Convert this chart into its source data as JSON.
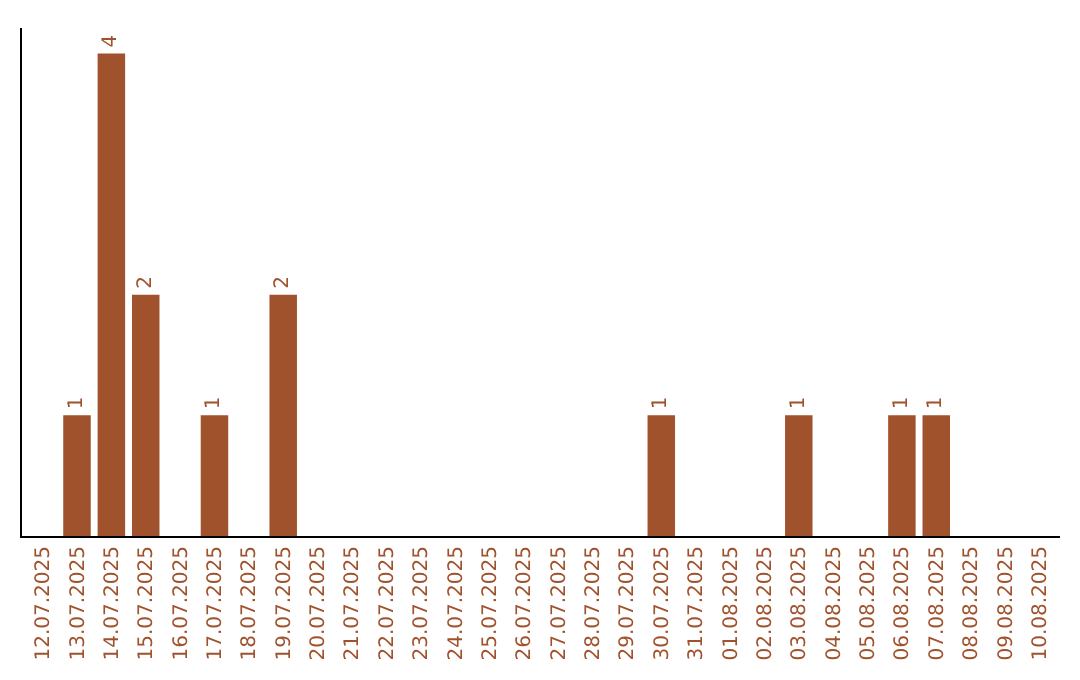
{
  "chart_data": {
    "type": "bar",
    "categories": [
      "12.07.2025",
      "13.07.2025",
      "14.07.2025",
      "15.07.2025",
      "16.07.2025",
      "17.07.2025",
      "18.07.2025",
      "19.07.2025",
      "20.07.2025",
      "21.07.2025",
      "22.07.2025",
      "23.07.2025",
      "24.07.2025",
      "25.07.2025",
      "26.07.2025",
      "27.07.2025",
      "28.07.2025",
      "29.07.2025",
      "30.07.2025",
      "31.07.2025",
      "01.08.2025",
      "02.08.2025",
      "03.08.2025",
      "04.08.2025",
      "05.08.2025",
      "06.08.2025",
      "07.08.2025",
      "08.08.2025",
      "09.08.2025",
      "10.08.2025"
    ],
    "values": [
      0,
      1,
      4,
      2,
      0,
      1,
      0,
      2,
      0,
      0,
      0,
      0,
      0,
      0,
      0,
      0,
      0,
      0,
      1,
      0,
      0,
      0,
      1,
      0,
      0,
      1,
      1,
      0,
      0,
      0
    ],
    "value_labels": [
      null,
      "1",
      "4",
      "2",
      null,
      "1",
      null,
      "2",
      null,
      null,
      null,
      null,
      null,
      null,
      null,
      null,
      null,
      null,
      "1",
      null,
      null,
      null,
      "1",
      null,
      null,
      "1",
      "1",
      null,
      null,
      null
    ],
    "color": "#a0522d",
    "tick_labels": "x"
  }
}
